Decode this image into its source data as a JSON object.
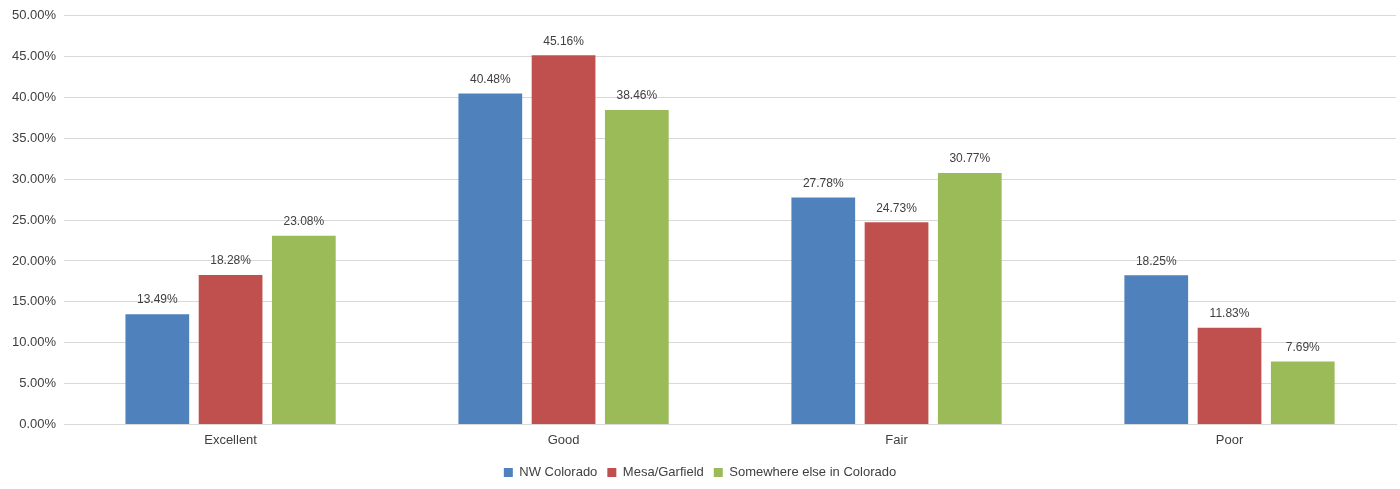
{
  "chart_data": {
    "type": "bar",
    "categories": [
      "Excellent",
      "Good",
      "Fair",
      "Poor"
    ],
    "series": [
      {
        "name": "NW Colorado",
        "color": "#4f81bd",
        "values": [
          13.49,
          40.48,
          27.78,
          18.25
        ],
        "value_labels": [
          "13.49%",
          "40.48%",
          "27.78%",
          "18.25%"
        ]
      },
      {
        "name": "Mesa/Garfield",
        "color": "#c0504d",
        "values": [
          18.28,
          45.16,
          24.73,
          11.83
        ],
        "value_labels": [
          "18.28%",
          "45.16%",
          "24.73%",
          "11.83%"
        ]
      },
      {
        "name": "Somewhere else in Colorado",
        "color": "#9bbb59",
        "values": [
          23.08,
          38.46,
          30.77,
          7.69
        ],
        "value_labels": [
          "23.08%",
          "38.46%",
          "30.77%",
          "7.69%"
        ]
      }
    ],
    "ylim": [
      0,
      50
    ],
    "yticks": [
      {
        "value": 0,
        "label": "0.00%"
      },
      {
        "value": 5,
        "label": "5.00%"
      },
      {
        "value": 10,
        "label": "10.00%"
      },
      {
        "value": 15,
        "label": "15.00%"
      },
      {
        "value": 20,
        "label": "20.00%"
      },
      {
        "value": 25,
        "label": "25.00%"
      },
      {
        "value": 30,
        "label": "30.00%"
      },
      {
        "value": 35,
        "label": "35.00%"
      },
      {
        "value": 40,
        "label": "40.00%"
      },
      {
        "value": 45,
        "label": "45.00%"
      },
      {
        "value": 50,
        "label": "50.00%"
      }
    ],
    "grid": "y",
    "legend": "bottom"
  }
}
